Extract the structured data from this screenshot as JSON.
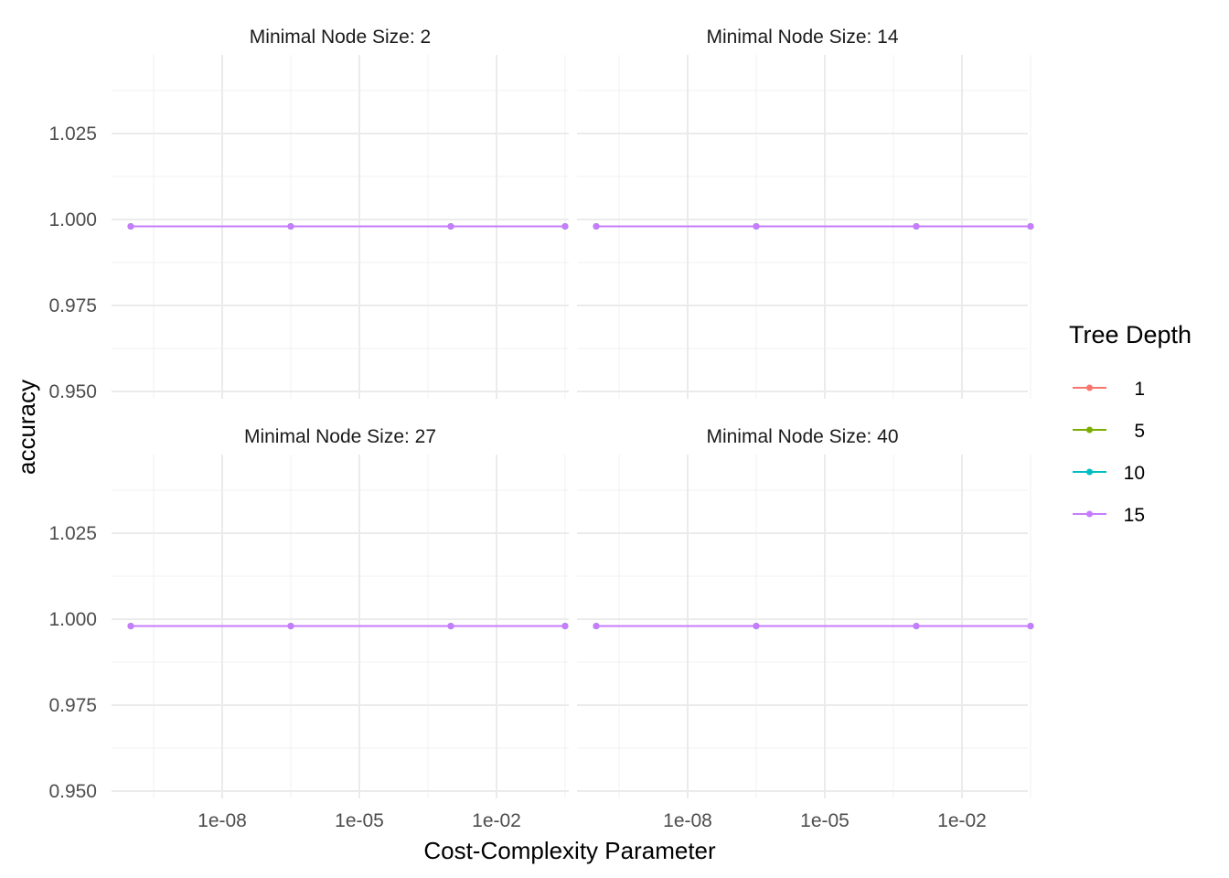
{
  "chart_data": {
    "type": "line",
    "xlabel": "Cost-Complexity Parameter",
    "ylabel": "accuracy",
    "x_scale": "log10",
    "x_ticks": [
      1e-08,
      1e-05,
      0.01
    ],
    "x_tick_labels": [
      "1e-08",
      "1e-05",
      "1e-02"
    ],
    "xlim": [
      1e-11,
      1.0
    ],
    "y_ticks": [
      0.95,
      0.975,
      1.0,
      1.025
    ],
    "y_tick_labels": [
      "0.950",
      "0.975",
      "1.000",
      "1.025"
    ],
    "ylim": [
      0.95,
      1.05
    ],
    "grid": true,
    "legend": {
      "title": "Tree Depth",
      "position": "right",
      "entries": [
        {
          "label": "1",
          "color": "#F8766D"
        },
        {
          "label": "5",
          "color": "#7CAE00"
        },
        {
          "label": "10",
          "color": "#00BFC4"
        },
        {
          "label": "15",
          "color": "#C77CFF"
        }
      ]
    },
    "panels": [
      {
        "title": "Minimal Node Size: 2",
        "series": [
          {
            "name": "1",
            "x": [
              1e-10,
              3.16e-07,
              0.001,
              0.316
            ],
            "y": [
              0.998,
              0.998,
              0.998,
              0.998
            ]
          },
          {
            "name": "5",
            "x": [
              1e-10,
              3.16e-07,
              0.001,
              0.316
            ],
            "y": [
              0.998,
              0.998,
              0.998,
              0.998
            ]
          },
          {
            "name": "10",
            "x": [
              1e-10,
              3.16e-07,
              0.001,
              0.316
            ],
            "y": [
              0.998,
              0.998,
              0.998,
              0.998
            ]
          },
          {
            "name": "15",
            "x": [
              1e-10,
              3.16e-07,
              0.001,
              0.316
            ],
            "y": [
              0.998,
              0.998,
              0.998,
              0.998
            ]
          }
        ]
      },
      {
        "title": "Minimal Node Size: 14",
        "series": [
          {
            "name": "1",
            "x": [
              1e-10,
              3.16e-07,
              0.001,
              0.316
            ],
            "y": [
              0.998,
              0.998,
              0.998,
              0.998
            ]
          },
          {
            "name": "5",
            "x": [
              1e-10,
              3.16e-07,
              0.001,
              0.316
            ],
            "y": [
              0.998,
              0.998,
              0.998,
              0.998
            ]
          },
          {
            "name": "10",
            "x": [
              1e-10,
              3.16e-07,
              0.001,
              0.316
            ],
            "y": [
              0.998,
              0.998,
              0.998,
              0.998
            ]
          },
          {
            "name": "15",
            "x": [
              1e-10,
              3.16e-07,
              0.001,
              0.316
            ],
            "y": [
              0.998,
              0.998,
              0.998,
              0.998
            ]
          }
        ]
      },
      {
        "title": "Minimal Node Size: 27",
        "series": [
          {
            "name": "1",
            "x": [
              1e-10,
              3.16e-07,
              0.001,
              0.316
            ],
            "y": [
              0.998,
              0.998,
              0.998,
              0.998
            ]
          },
          {
            "name": "5",
            "x": [
              1e-10,
              3.16e-07,
              0.001,
              0.316
            ],
            "y": [
              0.998,
              0.998,
              0.998,
              0.998
            ]
          },
          {
            "name": "10",
            "x": [
              1e-10,
              3.16e-07,
              0.001,
              0.316
            ],
            "y": [
              0.998,
              0.998,
              0.998,
              0.998
            ]
          },
          {
            "name": "15",
            "x": [
              1e-10,
              3.16e-07,
              0.001,
              0.316
            ],
            "y": [
              0.998,
              0.998,
              0.998,
              0.998
            ]
          }
        ]
      },
      {
        "title": "Minimal Node Size: 40",
        "series": [
          {
            "name": "1",
            "x": [
              1e-10,
              3.16e-07,
              0.001,
              0.316
            ],
            "y": [
              0.998,
              0.998,
              0.998,
              0.998
            ]
          },
          {
            "name": "5",
            "x": [
              1e-10,
              3.16e-07,
              0.001,
              0.316
            ],
            "y": [
              0.998,
              0.998,
              0.998,
              0.998
            ]
          },
          {
            "name": "10",
            "x": [
              1e-10,
              3.16e-07,
              0.001,
              0.316
            ],
            "y": [
              0.998,
              0.998,
              0.998,
              0.998
            ]
          },
          {
            "name": "15",
            "x": [
              1e-10,
              3.16e-07,
              0.001,
              0.316
            ],
            "y": [
              0.998,
              0.998,
              0.998,
              0.998
            ]
          }
        ]
      }
    ]
  }
}
